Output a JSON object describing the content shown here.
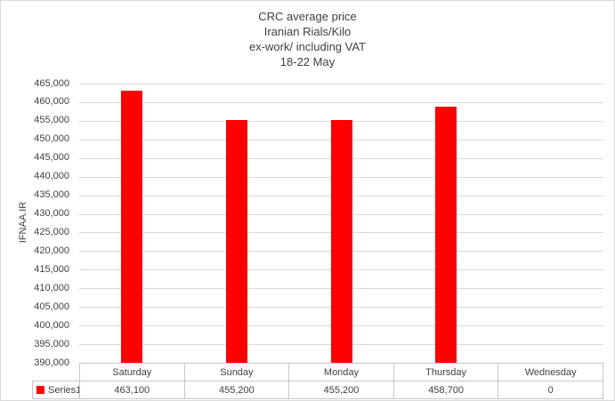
{
  "title": {
    "lines": [
      "CRC average price",
      "Iranian Rials/Kilo",
      "ex-work/ including VAT",
      "18-22 May"
    ]
  },
  "chart_data": {
    "type": "bar",
    "title": "CRC average price Iranian Rials/Kilo ex-work/ including VAT 18-22 May",
    "ylabel": "IFNAA.IR",
    "xlabel": "",
    "categories": [
      "Saturday",
      "Sunday",
      "Monday",
      "Thursday",
      "Wednesday"
    ],
    "series": [
      {
        "name": "Series1",
        "values": [
          463100,
          455200,
          455200,
          458700,
          0
        ]
      }
    ],
    "value_labels": [
      "463,100",
      "455,200",
      "455,200",
      "458,700",
      "0"
    ],
    "ylim": [
      390000,
      465000
    ],
    "ytick_step": 5000,
    "ytick_labels": [
      "465,000",
      "460,000",
      "455,000",
      "450,000",
      "445,000",
      "440,000",
      "435,000",
      "430,000",
      "425,000",
      "420,000",
      "415,000",
      "410,000",
      "405,000",
      "400,000",
      "395,000",
      "390,000"
    ],
    "grid": true,
    "legend_position": "bottom-table-left",
    "legend_entries": [
      "Series1"
    ]
  },
  "colors": {
    "bar": "#ff0000",
    "legend_swatch": "#ff0000",
    "gridline": "#d9d9d9",
    "table_border": "#c6c6c6",
    "text": "#404040"
  }
}
